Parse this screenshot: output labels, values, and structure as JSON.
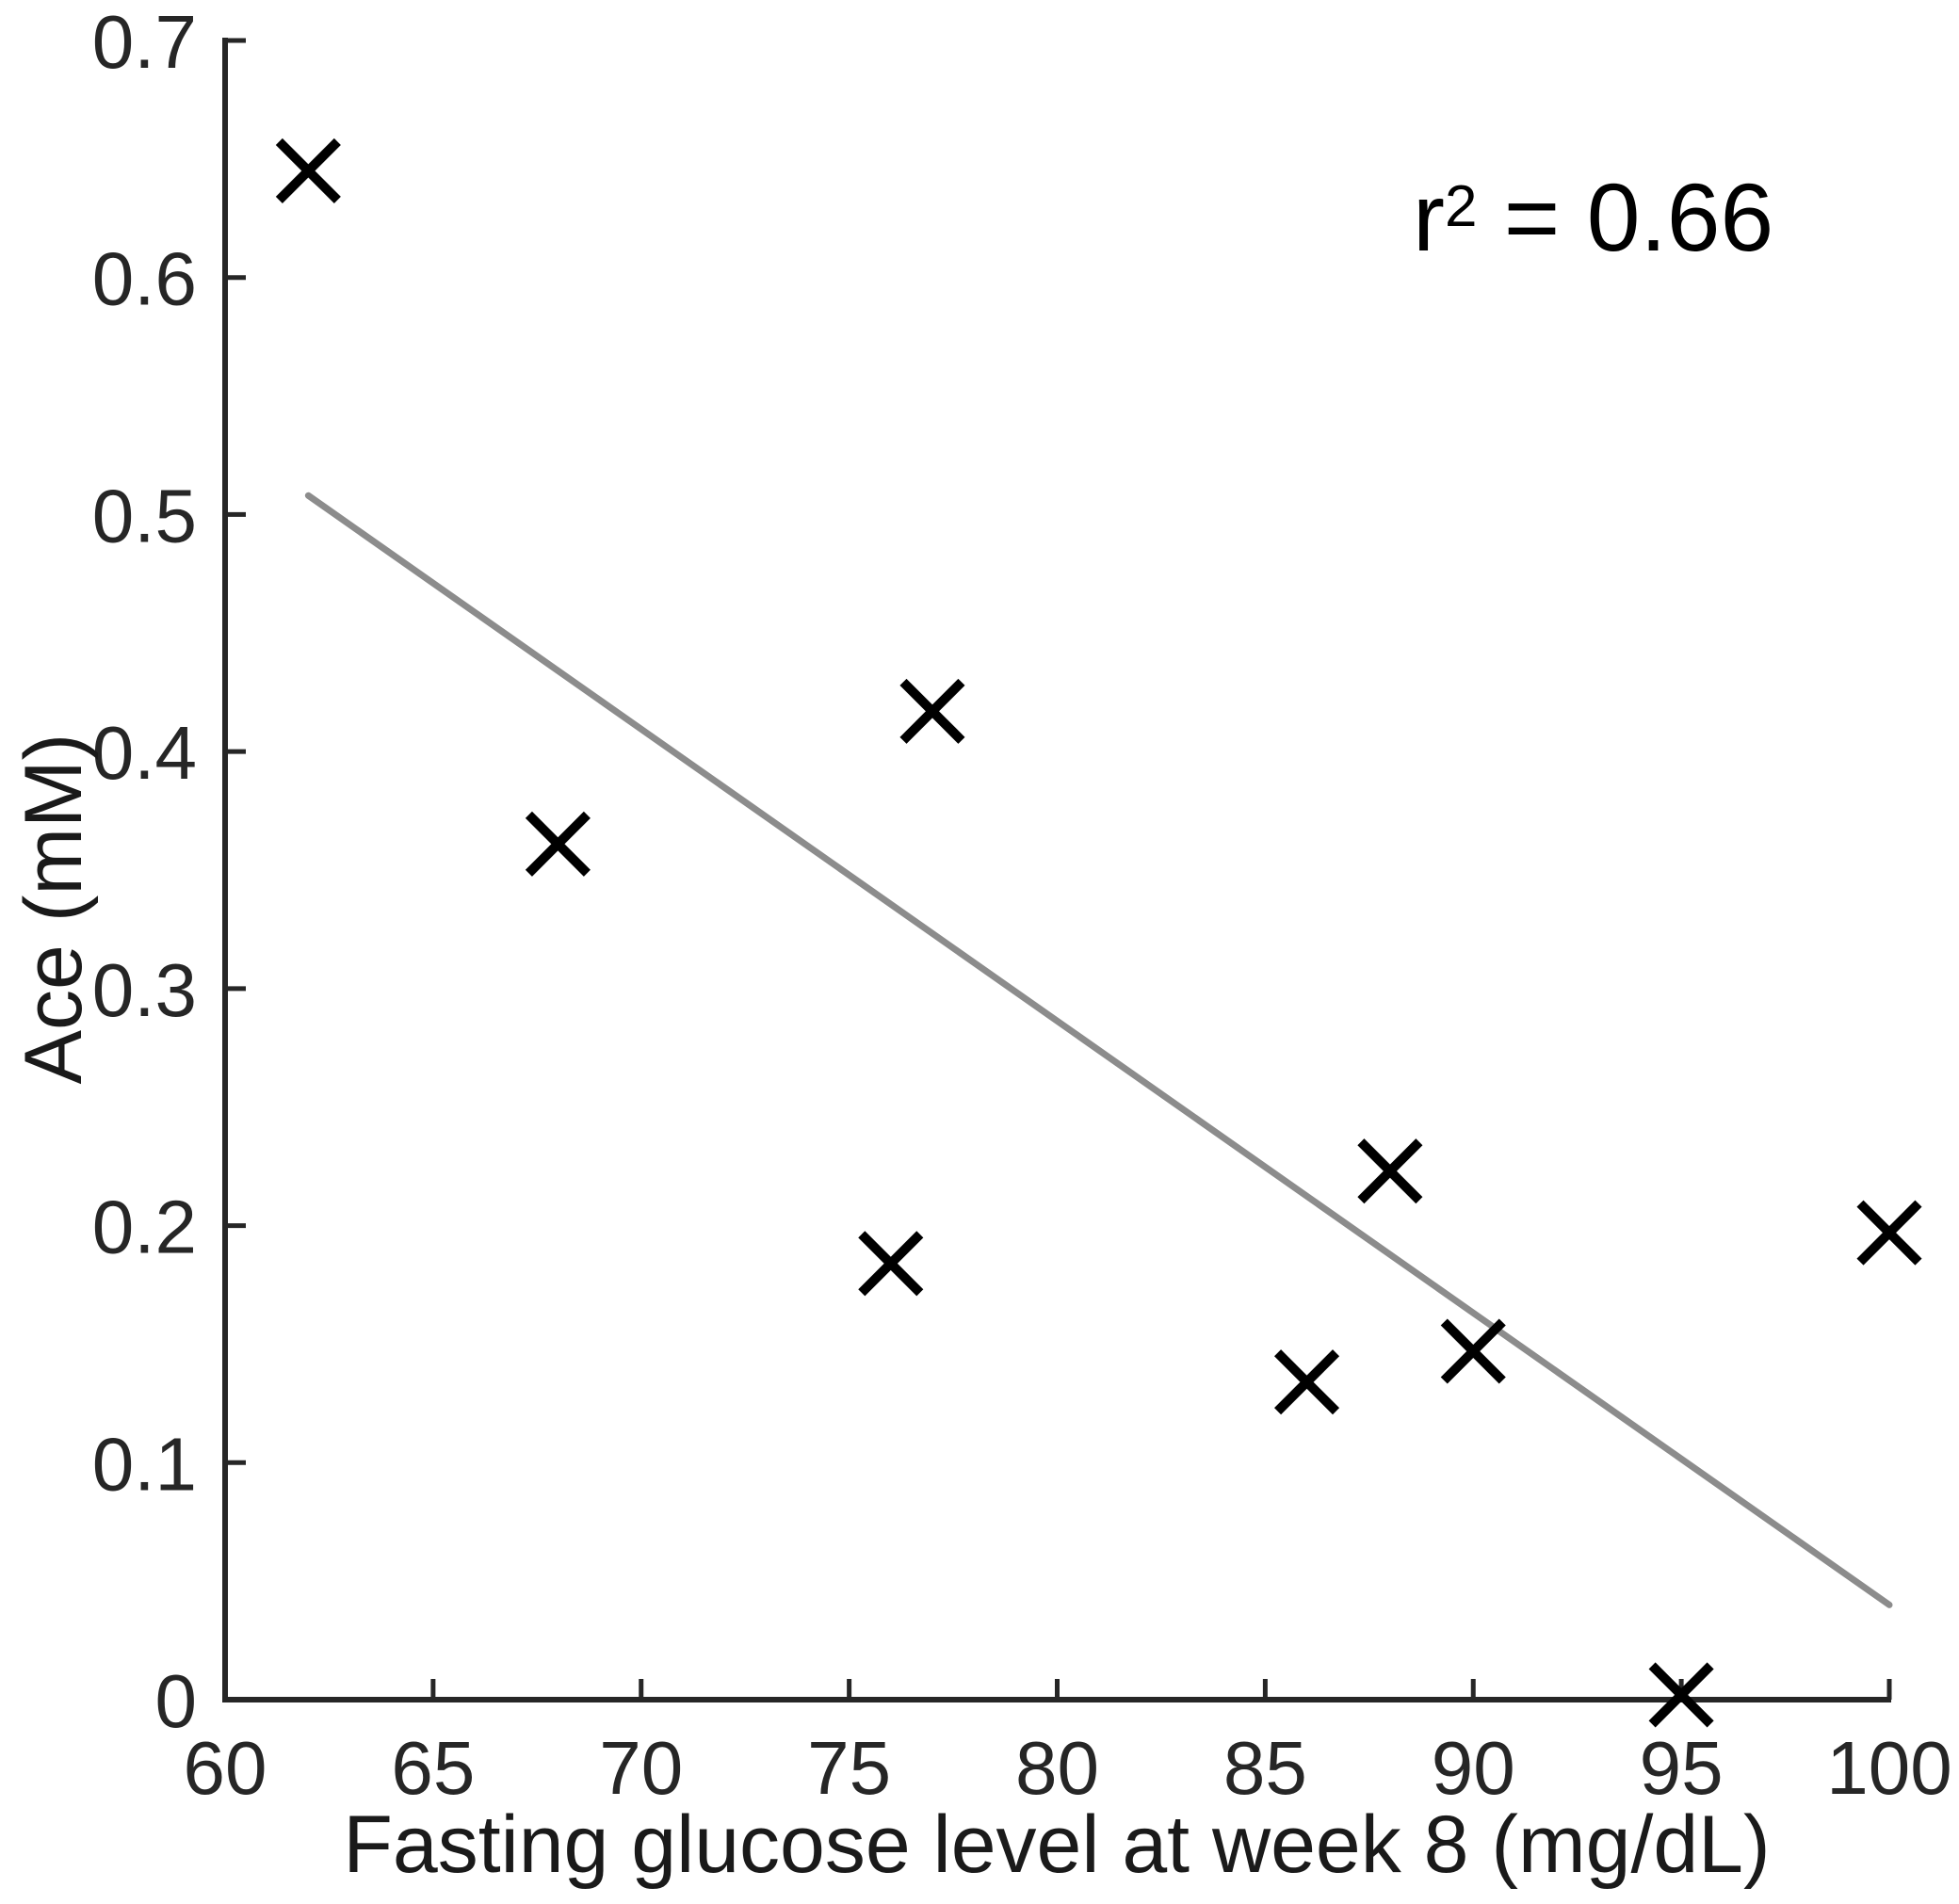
{
  "figure": {
    "background": "#ffffff"
  },
  "annotation": {
    "base": "r",
    "sup": "2",
    "rest": " = 0.66"
  },
  "chart_data": {
    "type": "scatter",
    "title": "",
    "xlabel": "Fasting glucose level at week 8 (mg/dL)",
    "ylabel": "Ace (mM)",
    "xlim": [
      60,
      100
    ],
    "ylim": [
      0,
      0.7
    ],
    "x_ticks": [
      60,
      65,
      70,
      75,
      80,
      85,
      90,
      95,
      100
    ],
    "x_tick_labels": [
      "60",
      "65",
      "70",
      "75",
      "80",
      "85",
      "90",
      "95",
      "100"
    ],
    "y_ticks": [
      0,
      0.1,
      0.2,
      0.3,
      0.4,
      0.5,
      0.6,
      0.7
    ],
    "y_tick_labels": [
      "0",
      "0.1",
      "0.2",
      "0.3",
      "0.4",
      "0.5",
      "0.6",
      "0.7"
    ],
    "points": [
      {
        "x": 62,
        "y": 0.645
      },
      {
        "x": 68,
        "y": 0.361
      },
      {
        "x": 76,
        "y": 0.184
      },
      {
        "x": 77,
        "y": 0.417
      },
      {
        "x": 86,
        "y": 0.134
      },
      {
        "x": 88,
        "y": 0.223
      },
      {
        "x": 90,
        "y": 0.147
      },
      {
        "x": 95,
        "y": 0.002
      },
      {
        "x": 100,
        "y": 0.197
      }
    ],
    "fit_line": {
      "x1": 62,
      "y1": 0.508,
      "x2": 100,
      "y2": 0.04
    },
    "r_squared": "0.66",
    "annotation_text": "r^2 = 0.66",
    "grid": false,
    "legend": null,
    "marker": "x",
    "colors": {
      "marker": "#000000",
      "fit_line": "#8c8c8c",
      "axis": "#262626",
      "tick_label": "#262626"
    }
  }
}
